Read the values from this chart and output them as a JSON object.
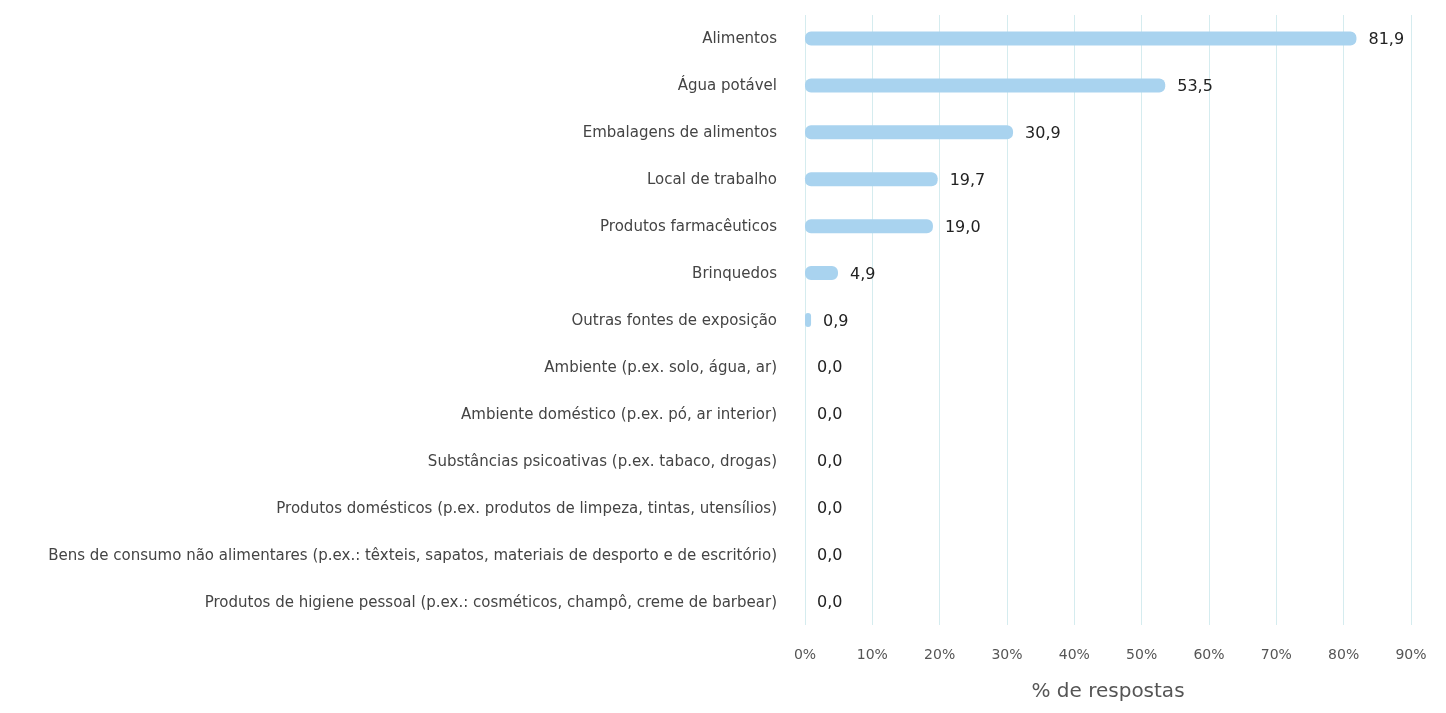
{
  "chart_data": {
    "type": "bar",
    "orientation": "horizontal",
    "xlabel": "% de respostas",
    "categories": [
      "Alimentos",
      "Água potável",
      "Embalagens de alimentos",
      "Local de trabalho",
      "Produtos farmacêuticos",
      "Brinquedos",
      "Outras fontes de exposição",
      "Ambiente (p.ex. solo, água, ar)",
      "Ambiente doméstico (p.ex. pó, ar interior)",
      "Substâncias psicoativas (p.ex. tabaco, drogas)",
      "Produtos domésticos (p.ex. produtos de limpeza, tintas, utensílios)",
      "Bens de consumo não alimentares (p.ex.: têxteis, sapatos, materiais de desporto e de escritório)",
      "Produtos de higiene pessoal (p.ex.: cosméticos, champô, creme de barbear)"
    ],
    "values": [
      81.9,
      53.5,
      30.9,
      19.7,
      19.0,
      4.9,
      0.9,
      0,
      0,
      0,
      0,
      0,
      0
    ],
    "value_labels": [
      "81,9",
      "53,5",
      "30,9",
      "19,7",
      "19,0",
      "4,9",
      "0,9",
      "0,0",
      "0,0",
      "0,0",
      "0,0",
      "0,0",
      "0,0"
    ],
    "color": "#a9d3ef",
    "xlim": [
      0,
      90
    ],
    "xticks": [
      {
        "value": 0,
        "label": "0%"
      },
      {
        "value": 10,
        "label": "10%"
      },
      {
        "value": 20,
        "label": "20%"
      },
      {
        "value": 30,
        "label": "30%"
      },
      {
        "value": 40,
        "label": "40%"
      },
      {
        "value": 50,
        "label": "50%"
      },
      {
        "value": 60,
        "label": "60%"
      },
      {
        "value": 70,
        "label": "70%"
      },
      {
        "value": 80,
        "label": "80%"
      },
      {
        "value": 90,
        "label": "90%"
      }
    ],
    "grid": "x"
  }
}
